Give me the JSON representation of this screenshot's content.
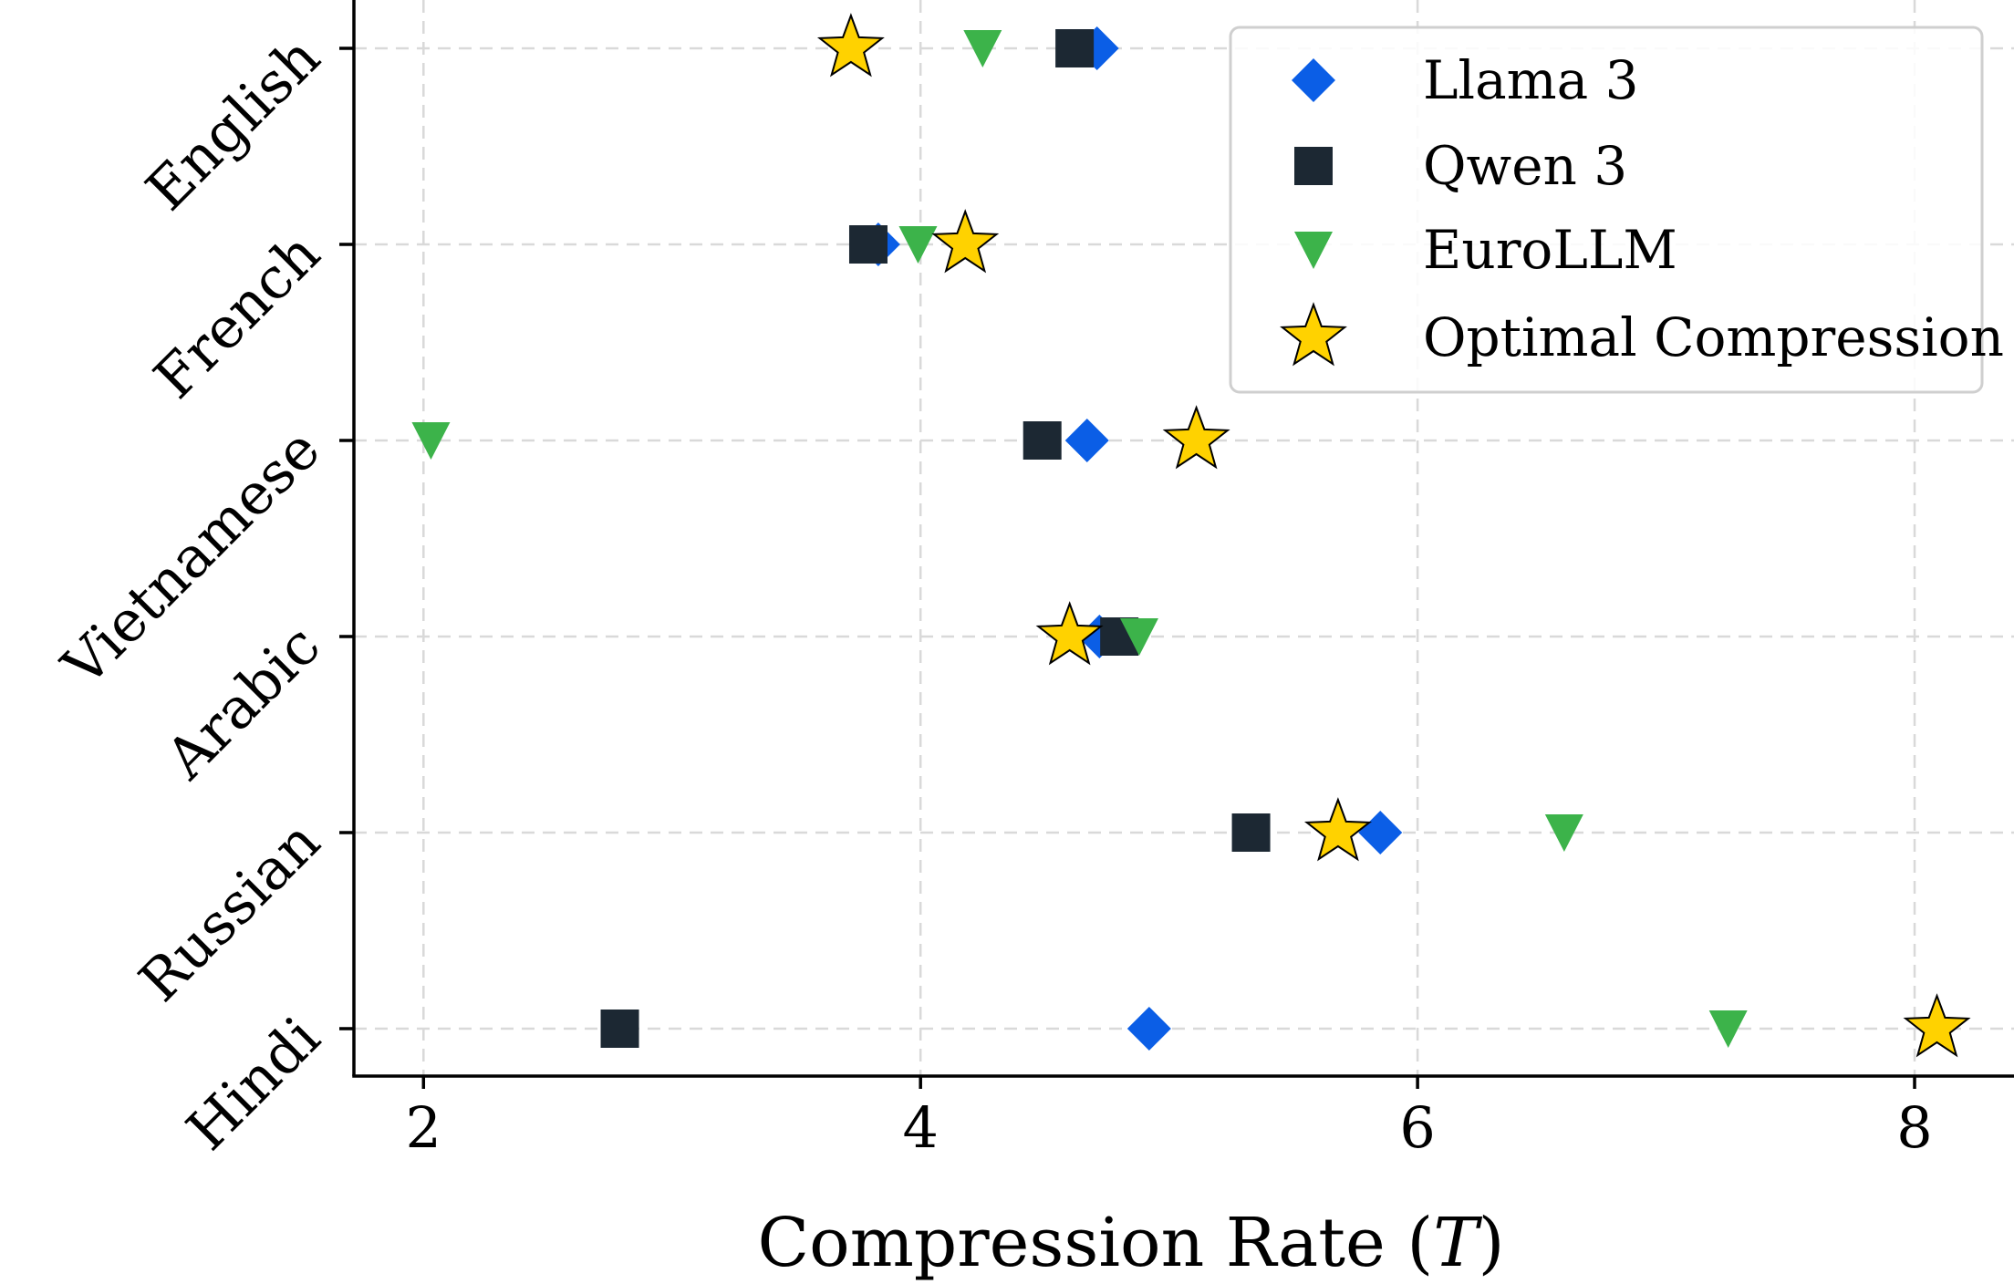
{
  "chart_data": {
    "type": "scatter",
    "xlabel": "Compression Rate (T)",
    "xlabel_parts": {
      "prefix": "Compression Rate (",
      "var": "T",
      "suffix": ")"
    },
    "ylabel": "",
    "xlim": [
      1.72,
      8.4
    ],
    "xticks": [
      2,
      4,
      6,
      8
    ],
    "xtick_labels": [
      "2",
      "4",
      "6",
      "8"
    ],
    "categories": [
      "English",
      "French",
      "Vietnamese",
      "Arabic",
      "Russian",
      "Hindi"
    ],
    "grid": true,
    "legend_position": "top-right",
    "series": [
      {
        "name": "Llama 3",
        "marker": "diamond",
        "color": "#0b5ee6",
        "values": [
          4.71,
          3.83,
          4.67,
          4.72,
          5.85,
          4.92
        ]
      },
      {
        "name": "Qwen 3",
        "marker": "square",
        "color": "#1c2833",
        "values": [
          4.62,
          3.79,
          4.49,
          4.8,
          5.33,
          2.79
        ]
      },
      {
        "name": "EuroLLM",
        "marker": "triangle-down",
        "color": "#3cb34a",
        "values": [
          4.25,
          3.99,
          2.03,
          4.88,
          6.59,
          7.25
        ]
      },
      {
        "name": "Optimal Compression",
        "marker": "star",
        "color": "#ffd200",
        "values": [
          3.72,
          4.18,
          5.11,
          4.6,
          5.68,
          8.09
        ]
      }
    ]
  }
}
